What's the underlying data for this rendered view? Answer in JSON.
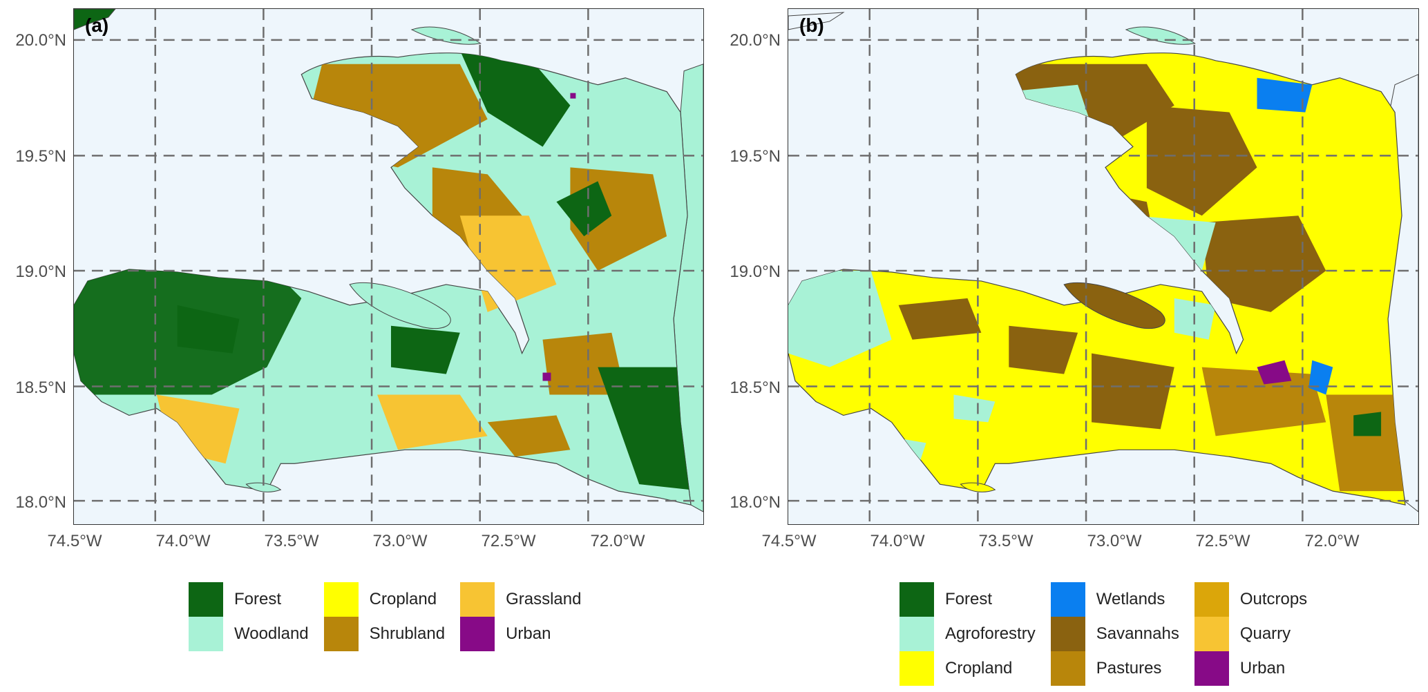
{
  "panels": [
    {
      "tag": "(a)",
      "lat_labels": [
        "20.0°N",
        "19.5°N",
        "19.0°N",
        "18.5°N",
        "18.0°N"
      ],
      "lon_labels": [
        "74.5°W",
        "74.0°W",
        "73.5°W",
        "73.0°W",
        "72.5°W",
        "72.0°W"
      ],
      "legend": [
        {
          "label": "Forest",
          "color": "#0d6614"
        },
        {
          "label": "Woodland",
          "color": "#a8f2d6"
        },
        {
          "label": "Cropland",
          "color": "#ffff00"
        },
        {
          "label": "Shrubland",
          "color": "#b8860b"
        },
        {
          "label": "Grassland",
          "color": "#f7c433"
        },
        {
          "label": "Urban",
          "color": "#870a87"
        }
      ]
    },
    {
      "tag": "(b)",
      "lat_labels": [
        "20.0°N",
        "19.5°N",
        "19.0°N",
        "18.5°N",
        "18.0°N"
      ],
      "lon_labels": [
        "74.5°W",
        "74.0°W",
        "73.5°W",
        "73.0°W",
        "72.5°W",
        "72.0°W"
      ],
      "legend": [
        {
          "label": "Forest",
          "color": "#0d6614"
        },
        {
          "label": "Agroforestry",
          "color": "#a8f2d6"
        },
        {
          "label": "Cropland",
          "color": "#ffff00"
        },
        {
          "label": "Wetlands",
          "color": "#0a7ff0"
        },
        {
          "label": "Savannahs",
          "color": "#8a6210"
        },
        {
          "label": "Pastures",
          "color": "#b8860b"
        },
        {
          "label": "Outcrops",
          "color": "#dba60a"
        },
        {
          "label": "Quarry",
          "color": "#f7c433"
        },
        {
          "label": "Urban",
          "color": "#870a87"
        }
      ]
    }
  ],
  "map": {
    "background": "#eef6fc",
    "gridline_color": "#6e6e6e"
  }
}
